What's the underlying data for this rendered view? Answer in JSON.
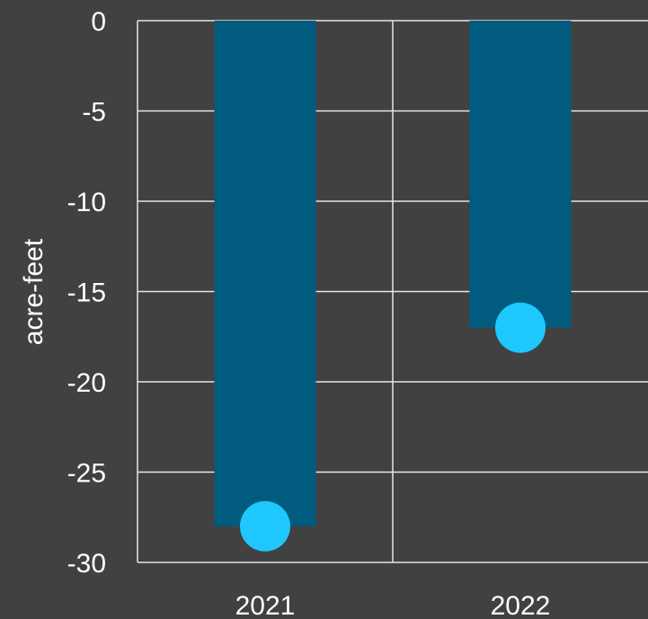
{
  "chart_data": {
    "type": "bar",
    "categories": [
      "2021",
      "2022"
    ],
    "series": [
      {
        "type": "bar",
        "values": [
          -28,
          -17
        ]
      },
      {
        "type": "point",
        "values": [
          -28,
          -17
        ]
      }
    ],
    "title": "",
    "xlabel": "",
    "ylabel": "acre-feet",
    "ylim": [
      -30,
      0
    ],
    "yticks": [
      0,
      -5,
      -10,
      -15,
      -20,
      -25,
      -30
    ],
    "ytick_labels": [
      "0",
      "-5",
      "-10",
      "-15",
      "-20",
      "-25",
      "-30"
    ],
    "grid": true,
    "legend": "none"
  },
  "colors": {
    "background": "#414141",
    "bar": "#005b7f",
    "point": "#1ec8ff",
    "grid": "#e6e6e6",
    "text": "#ffffff"
  }
}
